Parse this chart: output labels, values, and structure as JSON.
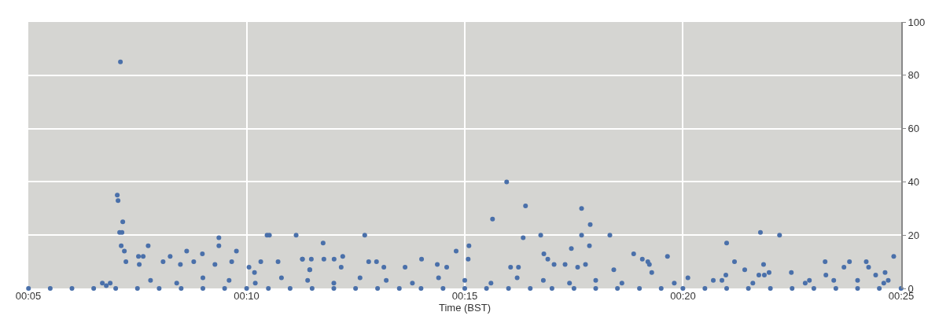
{
  "chart_data": {
    "type": "scatter",
    "xlabel": "Time (BST)",
    "x": [
      0.0834,
      0.0917,
      0.1,
      0.1083,
      0.1167,
      0.125,
      0.1333,
      0.1417,
      0.15,
      0.1583,
      0.1667,
      0.175,
      0.1833,
      0.1917,
      0.2,
      0.2083,
      0.2167,
      0.225,
      0.2333,
      0.2417,
      0.25,
      0.2583,
      0.2667,
      0.275,
      0.2833,
      0.2917,
      0.3,
      0.3083,
      0.3167,
      0.325,
      0.3333,
      0.3417,
      0.35,
      0.3583,
      0.3667,
      0.375,
      0.3833,
      0.3917,
      0.4,
      0.4083,
      0.4166,
      0.1185,
      0.1173,
      0.1176,
      0.1194,
      0.1182,
      0.1191,
      0.1188,
      0.12,
      0.1206,
      0.1254,
      0.1272,
      0.1257,
      0.1291,
      0.1348,
      0.1375,
      0.1414,
      0.1438,
      0.1465,
      0.1498,
      0.1561,
      0.1561,
      0.1546,
      0.161,
      0.1628,
      0.1676,
      0.1697,
      0.1721,
      0.1745,
      0.1754,
      0.1787,
      0.1856,
      0.188,
      0.1908,
      0.1959,
      0.2118,
      0.188,
      0.1914,
      0.1962,
      0.2001,
      0.2034,
      0.2133,
      0.2163,
      0.2335,
      0.2467,
      0.2516,
      0.2513,
      0.2606,
      0.266,
      0.2732,
      0.2723,
      0.279,
      0.2802,
      0.2817,
      0.2946,
      0.2979,
      0.2946,
      0.2907,
      0.2976,
      0.2961,
      0.3054,
      0.3069,
      0.1908,
      0.2028,
      0.2191,
      0.2272,
      0.2395,
      0.2431,
      0.2675,
      0.2705,
      0.2841,
      0.2883,
      0.2931,
      0.3145,
      0.3178,
      0.3199,
      0.3205,
      0.3214,
      0.3274,
      0.3352,
      0.35,
      0.353,
      0.3497,
      0.3569,
      0.3629,
      0.3641,
      0.3623,
      0.3644,
      0.3662,
      0.3702,
      0.3747,
      0.3816,
      0.3876,
      0.3879,
      0.3948,
      0.3969,
      0.4033,
      0.4042,
      0.4069,
      0.4105,
      0.4138,
      0.3449,
      0.3482,
      0.3909,
      0.4117,
      0.1116,
      0.1131,
      0.1146,
      0.13,
      0.14,
      0.15,
      0.16,
      0.17,
      0.18,
      0.19,
      0.2,
      0.21,
      0.22,
      0.23,
      0.24,
      0.25,
      0.26,
      0.27,
      0.28,
      0.29,
      0.3,
      0.31,
      0.33,
      0.36,
      0.38,
      0.4,
      0.41
    ],
    "values": [
      0,
      0,
      0,
      0,
      0,
      0,
      0,
      0,
      0,
      0,
      0,
      0,
      0,
      0,
      0,
      0,
      0,
      0,
      0,
      0,
      0,
      0,
      0,
      0,
      0,
      0,
      0,
      0,
      0,
      0,
      0,
      0,
      0,
      0,
      0,
      0,
      0,
      0,
      0,
      0,
      0,
      85,
      35,
      33,
      25,
      21,
      21,
      16,
      14,
      10,
      12,
      12,
      9,
      16,
      10,
      12,
      9,
      14,
      10,
      13,
      19,
      16,
      9,
      10,
      14,
      8,
      6,
      10,
      20,
      20,
      10,
      20,
      11,
      7,
      17,
      20,
      11,
      11,
      11,
      11,
      12,
      10,
      10,
      11,
      14,
      16,
      11,
      26,
      40,
      31,
      19,
      20,
      13,
      11,
      30,
      24,
      20,
      15,
      16,
      9,
      20,
      7,
      7,
      8,
      8,
      8,
      9,
      8,
      8,
      8,
      9,
      9,
      8,
      13,
      11,
      10,
      9,
      6,
      12,
      4,
      17,
      10,
      5,
      7,
      21,
      9,
      5,
      5,
      6,
      20,
      6,
      3,
      10,
      5,
      8,
      10,
      10,
      8,
      5,
      6,
      12,
      3,
      3,
      3,
      3,
      2,
      1,
      2,
      3,
      2,
      4,
      3,
      2,
      4,
      3,
      2,
      4,
      3,
      2,
      4,
      3,
      2,
      4,
      3,
      2,
      3,
      2,
      2,
      2,
      2,
      3,
      2
    ],
    "color": "#4a70aa",
    "marker": "circle",
    "xlim": [
      0.08333,
      0.41667
    ],
    "xticks": [
      {
        "value": 0.08333,
        "label": "00:05"
      },
      {
        "value": 0.16667,
        "label": "00:10"
      },
      {
        "value": 0.25,
        "label": "00:15"
      },
      {
        "value": 0.33333,
        "label": "00:20"
      },
      {
        "value": 0.41667,
        "label": "00:25"
      }
    ],
    "ylim": [
      0,
      100
    ],
    "yticks": [
      0,
      20,
      40,
      60,
      80,
      100
    ],
    "grid": true
  }
}
